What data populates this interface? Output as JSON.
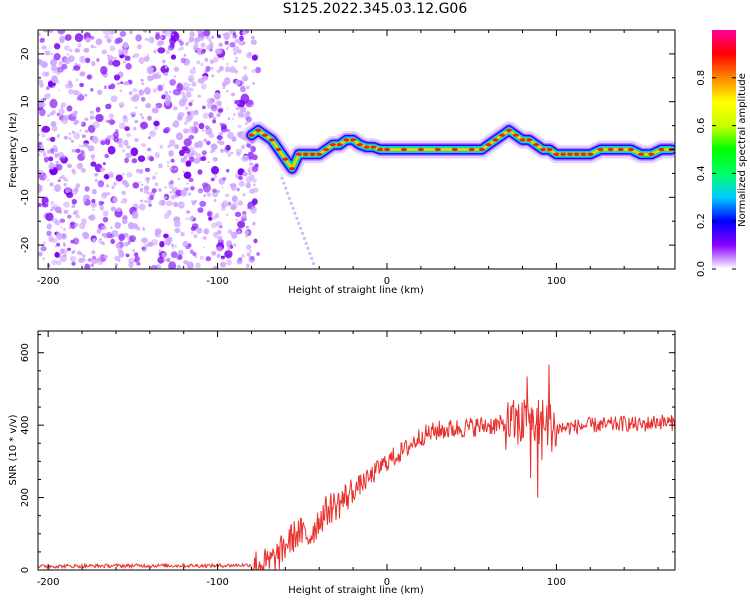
{
  "title": "S125.2022.345.03.12.G06",
  "chart_data": [
    {
      "type": "heatmap",
      "xlabel": "Height of straight line (km)",
      "ylabel": "Frequency (Hz)",
      "xlim": [
        -206,
        170
      ],
      "ylim": [
        -25,
        25
      ],
      "xticks": [
        -200,
        -100,
        0,
        100
      ],
      "yticks": [
        -20,
        -10,
        0,
        10,
        20
      ],
      "colorbar": {
        "label": "Normalized spectral amplitude",
        "range": [
          0,
          1
        ],
        "ticks": [
          0.0,
          0.2,
          0.4,
          0.6,
          0.8
        ],
        "colors": [
          "#ffffff",
          "#8800ff",
          "#0000ff",
          "#00ccff",
          "#00ff66",
          "#00ff00",
          "#ccff00",
          "#ffff00",
          "#ff8800",
          "#ff0000",
          "#ff0099"
        ]
      },
      "noise_region_x": [
        -206,
        -76
      ],
      "ridge": {
        "x": [
          -80,
          -76,
          -72,
          -68,
          -64,
          -60,
          -56,
          -52,
          -48,
          -44,
          -40,
          -36,
          -32,
          -28,
          -24,
          -20,
          -16,
          -12,
          -8,
          -4,
          0,
          10,
          20,
          30,
          40,
          50,
          56,
          60,
          64,
          68,
          72,
          76,
          80,
          84,
          88,
          92,
          96,
          100,
          104,
          108,
          112,
          116,
          120,
          126,
          132,
          138,
          144,
          150,
          156,
          162,
          168
        ],
        "freq": [
          3,
          4,
          3,
          2,
          0,
          -2,
          -4,
          -1,
          -1,
          -1,
          -1,
          0,
          1,
          1,
          2,
          2,
          1,
          0.5,
          0.5,
          0,
          0,
          0,
          0,
          0,
          0,
          0,
          0,
          1,
          2,
          3,
          4,
          3,
          2,
          2,
          1,
          0,
          0,
          -1,
          -1,
          -1,
          -1,
          -1,
          -1,
          0,
          0,
          0,
          0,
          -1,
          -1,
          0,
          0
        ]
      }
    },
    {
      "type": "line",
      "xlabel": "Height of straight line (km)",
      "ylabel": "SNR (10 * v/v)",
      "xlim": [
        -206,
        170
      ],
      "ylim": [
        0,
        660
      ],
      "xticks": [
        -200,
        -100,
        0,
        100
      ],
      "yticks": [
        0,
        200,
        400,
        600
      ],
      "series": [
        {
          "color": "#e8312e",
          "x": [
            -206,
            -150,
            -100,
            -80,
            -70,
            -64,
            -58,
            -52,
            -46,
            -40,
            -34,
            -28,
            -22,
            -16,
            -10,
            -5,
            0,
            10,
            20,
            30,
            40,
            50,
            60,
            70,
            80,
            90,
            100,
            110,
            120,
            130,
            140,
            150,
            160,
            170
          ],
          "y": [
            10,
            12,
            12,
            14,
            18,
            40,
            80,
            105,
            90,
            140,
            170,
            185,
            210,
            235,
            255,
            280,
            300,
            330,
            370,
            385,
            390,
            395,
            400,
            400,
            405,
            410,
            390,
            395,
            400,
            400,
            405,
            400,
            410,
            405
          ]
        }
      ]
    }
  ]
}
